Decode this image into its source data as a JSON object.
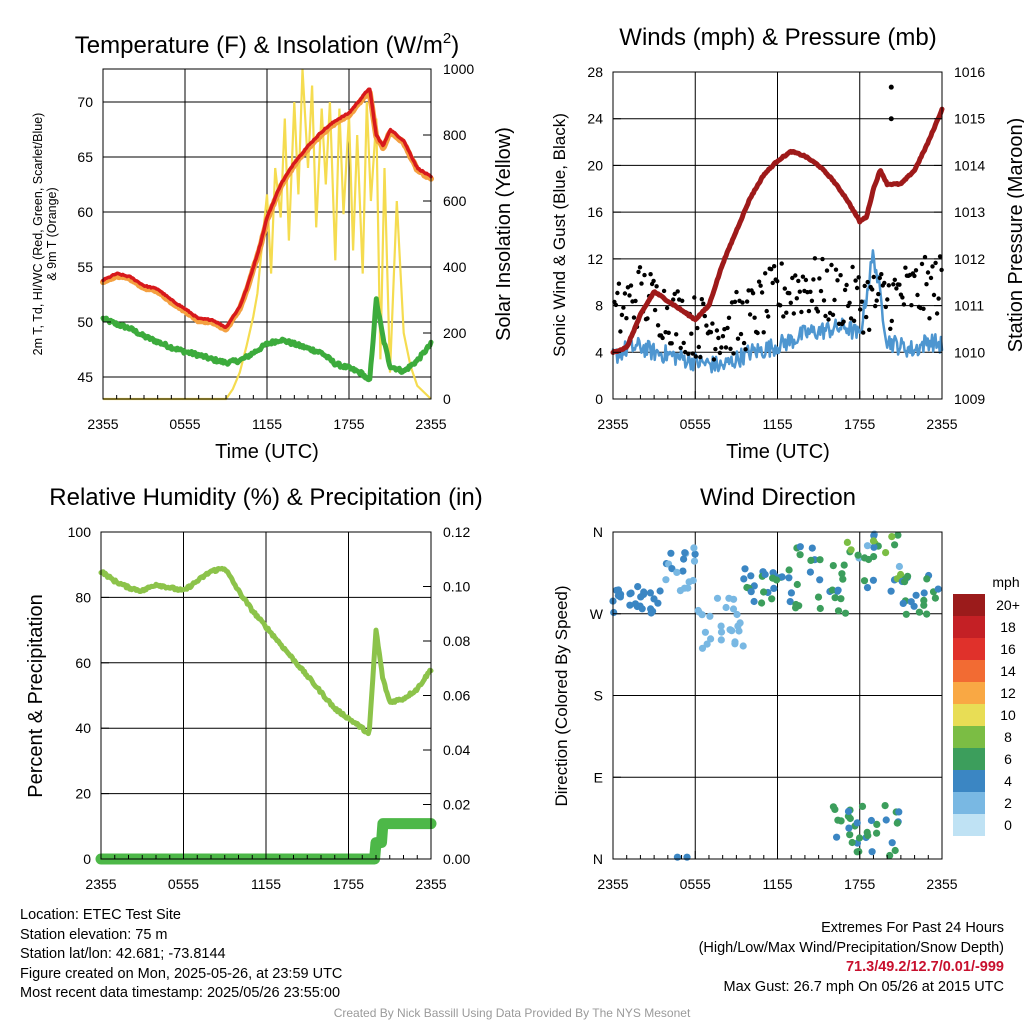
{
  "colors": {
    "temp": "#d7191c",
    "wind_chill": "#e34a33",
    "nine_m": "#f4a040",
    "dewpoint": "#3cab3c",
    "solar": "#f5dc50",
    "sonic_wind": "#4e96d0",
    "gust": "#000000",
    "pressure": "#9e1a1a",
    "rh": "#8cc34a",
    "precip": "#4db848",
    "extremes": "#c8102e",
    "credit": "#9a9a9a"
  },
  "chart_data": [
    {
      "id": "temp",
      "type": "line",
      "title": "Temperature (F) & Insolation (W/m²)",
      "title_main": "Temperature (F) & Insolation (W/m",
      "title_sup": "2",
      "title_end": ")",
      "xlabel": "Time (UTC)",
      "ylabel_left_line1": "2m T, Td, HI/WC (Red, Green, Scarlet/Blue)",
      "ylabel_left_line2": "& 9m T (Orange)",
      "ylabel_right": "Solar Insolation (Yellow)",
      "x_ticks": [
        "2355",
        "0555",
        "1155",
        "1755",
        "2355"
      ],
      "ylim_left": [
        43,
        73
      ],
      "yticks_left": [
        "45",
        "50",
        "55",
        "60",
        "65",
        "70"
      ],
      "ylim_right": [
        0,
        1000
      ],
      "yticks_right": [
        "0",
        "200",
        "400",
        "600",
        "800",
        "1000"
      ],
      "x_hours": [
        0,
        1,
        2,
        3,
        4,
        5,
        6,
        7,
        8,
        9,
        10,
        10.5,
        11,
        11.5,
        12,
        13,
        14,
        15,
        16,
        17,
        18,
        19,
        19.5,
        20,
        20.5,
        21,
        22,
        23,
        24
      ],
      "series": [
        {
          "name": "2m T",
          "axis": "left",
          "values": [
            53.8,
            54.4,
            54.1,
            53.3,
            53.0,
            52.0,
            51.2,
            50.3,
            50.2,
            49.5,
            51.4,
            53.0,
            55.0,
            57.0,
            59.5,
            62.5,
            64.5,
            66.0,
            67.3,
            68.3,
            69.0,
            70.5,
            71.3,
            67.0,
            66.0,
            67.5,
            66.5,
            64.0,
            63.2
          ]
        },
        {
          "name": "9m T",
          "axis": "left",
          "values": [
            53.6,
            54.2,
            53.9,
            53.1,
            52.8,
            51.8,
            51.0,
            50.1,
            50.0,
            49.3,
            51.2,
            52.8,
            54.8,
            56.8,
            59.3,
            62.3,
            64.3,
            65.8,
            67.1,
            68.1,
            68.8,
            70.3,
            71.0,
            66.8,
            65.8,
            67.3,
            66.3,
            63.8,
            63.0
          ]
        },
        {
          "name": "Td",
          "axis": "left",
          "values": [
            50.3,
            49.8,
            49.4,
            48.7,
            48.2,
            47.7,
            47.3,
            47.0,
            46.6,
            46.3,
            46.5,
            46.8,
            47.2,
            47.6,
            48.0,
            48.4,
            48.0,
            47.6,
            47.2,
            46.2,
            45.8,
            45.3,
            44.5,
            52.0,
            48.5,
            46.0,
            45.5,
            46.5,
            48.0
          ]
        }
      ],
      "solar_x_hours": [
        0,
        9,
        9.5,
        10,
        10.5,
        11,
        11.3,
        11.6,
        12,
        12.3,
        12.6,
        13,
        13.3,
        13.6,
        14,
        14.3,
        14.6,
        15,
        15.3,
        15.6,
        16,
        16.3,
        16.6,
        17,
        17.3,
        17.6,
        18,
        18.3,
        18.6,
        19,
        19.3,
        19.6,
        20,
        20.3,
        20.6,
        21,
        21.5,
        22,
        22.5,
        23,
        24
      ],
      "solar_values": [
        0,
        0,
        30,
        80,
        160,
        250,
        320,
        450,
        620,
        380,
        700,
        550,
        850,
        480,
        900,
        620,
        1000,
        700,
        950,
        520,
        880,
        650,
        900,
        420,
        880,
        560,
        860,
        450,
        800,
        380,
        900,
        600,
        850,
        120,
        700,
        80,
        600,
        200,
        100,
        40,
        0
      ]
    },
    {
      "id": "winds",
      "type": "scatter",
      "title": "Winds (mph) & Pressure (mb)",
      "xlabel": "Time (UTC)",
      "ylabel_left": "Sonic Wind & Gust (Blue, Black)",
      "ylabel_right": "Station Pressure (Maroon)",
      "x_ticks": [
        "2355",
        "0555",
        "1155",
        "1755",
        "2355"
      ],
      "ylim_left": [
        0,
        28
      ],
      "yticks_left": [
        "0",
        "4",
        "8",
        "12",
        "16",
        "20",
        "24",
        "28"
      ],
      "ylim_right": [
        1009,
        1016
      ],
      "yticks_right": [
        "1009",
        "1010",
        "1011",
        "1012",
        "1013",
        "1014",
        "1015",
        "1016"
      ],
      "pressure": {
        "x_hours": [
          0,
          1,
          2,
          3,
          4,
          5,
          6,
          7,
          8,
          9,
          10,
          11,
          12,
          13,
          14,
          15,
          16,
          17,
          18,
          18.5,
          19,
          19.5,
          20,
          21,
          22,
          23,
          24
        ],
        "values": [
          1010.0,
          1010.1,
          1010.8,
          1011.3,
          1011.1,
          1010.9,
          1010.7,
          1011.0,
          1011.9,
          1012.6,
          1013.3,
          1013.8,
          1014.1,
          1014.3,
          1014.2,
          1014.0,
          1013.7,
          1013.3,
          1012.8,
          1012.9,
          1013.5,
          1013.9,
          1013.6,
          1013.6,
          1013.9,
          1014.5,
          1015.2
        ]
      },
      "sonic_wind": {
        "x_hours": [
          0,
          1,
          2,
          3,
          4,
          5,
          6,
          7,
          8,
          9,
          10,
          11,
          12,
          13,
          14,
          15,
          16,
          17,
          18,
          19,
          20,
          21,
          22,
          23,
          24
        ],
        "values": [
          3.6,
          4.3,
          4.5,
          4.0,
          3.8,
          3.5,
          3.2,
          3.0,
          2.8,
          3.4,
          4.0,
          4.2,
          4.6,
          5.0,
          5.6,
          5.8,
          6.0,
          6.2,
          5.4,
          12.5,
          5.0,
          4.5,
          4.2,
          5.0,
          4.6
        ]
      },
      "gust_trend_hours": [
        0,
        2,
        4,
        6,
        8,
        10,
        12,
        14,
        16,
        18,
        20,
        22,
        24
      ],
      "gust_trend_values": [
        7.0,
        9.0,
        7.5,
        6.2,
        6.0,
        7.0,
        9.0,
        9.8,
        9.0,
        8.4,
        8.6,
        9.2,
        9.8
      ],
      "gust_outliers": [
        {
          "x": 20.3,
          "y": 26.7
        },
        {
          "x": 20.3,
          "y": 24.0
        }
      ]
    },
    {
      "id": "rh",
      "type": "line",
      "title": "Relative Humidity (%) & Precipitation (in)",
      "xlabel": "",
      "ylabel_left": "Percent & Precipitation",
      "x_ticks": [
        "2355",
        "0555",
        "1155",
        "1755",
        "2355"
      ],
      "ylim_left": [
        0,
        100
      ],
      "yticks_left": [
        "0",
        "20",
        "40",
        "60",
        "80",
        "100"
      ],
      "ylim_right": [
        0,
        0.12
      ],
      "yticks_right": [
        "0.00",
        "0.02",
        "0.04",
        "0.06",
        "0.08",
        "0.10",
        "0.12"
      ],
      "series": [
        {
          "name": "RH",
          "axis": "left",
          "x_hours": [
            0,
            1,
            2,
            3,
            4,
            5,
            6,
            7,
            8,
            9,
            10,
            11,
            12,
            13,
            14,
            15,
            16,
            17,
            18,
            19,
            19.5,
            20,
            20.5,
            21,
            22,
            23,
            24
          ],
          "values": [
            88,
            85,
            83,
            82,
            84,
            83,
            82,
            85,
            88,
            89,
            82,
            76,
            71,
            66,
            61,
            56,
            51,
            46,
            43,
            40,
            38,
            70,
            55,
            48,
            49,
            52,
            58
          ]
        },
        {
          "name": "Precipitation",
          "axis": "right",
          "x_hours": [
            0,
            19.9,
            20.0,
            20.4,
            20.5,
            24
          ],
          "values": [
            0,
            0,
            0.006,
            0.006,
            0.013,
            0.013
          ]
        }
      ]
    },
    {
      "id": "direction",
      "type": "scatter",
      "title": "Wind Direction",
      "ylabel_left": "Direction (Colored By Speed)",
      "x_ticks": [
        "2355",
        "0555",
        "1155",
        "1755",
        "2355"
      ],
      "ylim_left": [
        0,
        360
      ],
      "yticks_left": [
        "N",
        "E",
        "S",
        "W",
        "N"
      ],
      "legend": {
        "title": "mph",
        "labels": [
          "20+",
          "18",
          "16",
          "14",
          "12",
          "10",
          "8",
          "6",
          "4",
          "2",
          "0"
        ],
        "colors": [
          "#9b1b1b",
          "#c42025",
          "#e0312b",
          "#f26b33",
          "#f9a844",
          "#e8dd55",
          "#7bbd44",
          "#3c9e5c",
          "#3b86c3",
          "#79b8e3",
          "#bfe2f4"
        ]
      },
      "clusters": [
        {
          "x_from": 0,
          "x_to": 3.5,
          "deg_from": 270,
          "deg_to": 300,
          "speed_from": 3,
          "speed_to": 4
        },
        {
          "x_from": 3.5,
          "x_to": 6,
          "deg_from": 295,
          "deg_to": 350,
          "speed_from": 1,
          "speed_to": 4
        },
        {
          "x_from": 6,
          "x_to": 9.5,
          "deg_from": 230,
          "deg_to": 290,
          "speed_from": 1,
          "speed_to": 3
        },
        {
          "x_from": 9.5,
          "x_to": 13,
          "deg_from": 280,
          "deg_to": 320,
          "speed_from": 3,
          "speed_to": 7
        },
        {
          "x_from": 13,
          "x_to": 17,
          "deg_from": 270,
          "deg_to": 345,
          "speed_from": 3,
          "speed_to": 7
        },
        {
          "x_from": 17,
          "x_to": 21,
          "deg_from": 290,
          "deg_to": 358,
          "speed_from": 2,
          "speed_to": 9
        },
        {
          "x_from": 21,
          "x_to": 24,
          "deg_from": 265,
          "deg_to": 315,
          "speed_from": 3,
          "speed_to": 7
        },
        {
          "x_from": 16,
          "x_to": 21,
          "deg_from": 2,
          "deg_to": 60,
          "speed_from": 3,
          "speed_to": 7
        }
      ],
      "isolated_points": [
        {
          "x": 4.7,
          "deg": 2,
          "speed": 3
        },
        {
          "x": 5.4,
          "deg": 2,
          "speed": 4
        }
      ]
    }
  ],
  "info_left": [
    "Location: ETEC Test Site",
    "Station elevation: 75 m",
    "Station lat/lon: 42.681; -73.8144",
    "Figure created on Mon, 2025-05-26, at 23:59 UTC",
    "Most recent data timestamp: 2025/05/26 23:55:00"
  ],
  "info_right": {
    "line1": "Extremes For Past 24 Hours",
    "line2": "(High/Low/Max Wind/Precipitation/Snow Depth)",
    "values": "71.3/49.2/12.7/0.01/-999",
    "line4": "Max Gust: 26.7 mph On 05/26 at 2015 UTC"
  },
  "credit": "Created By Nick Bassill Using Data Provided By The NYS Mesonet"
}
